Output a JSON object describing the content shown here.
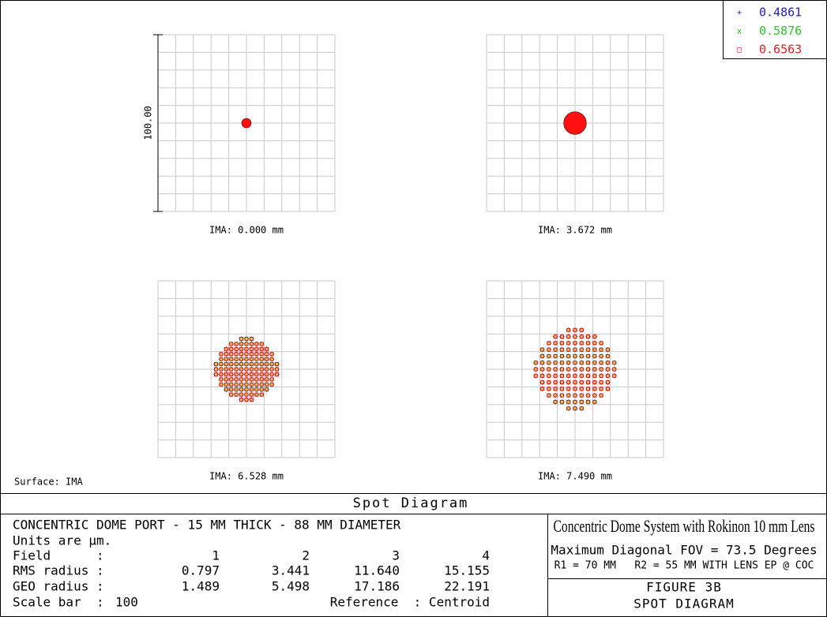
{
  "legend": [
    {
      "symbol": "+",
      "label": "0.4861",
      "color": "#2020c0"
    },
    {
      "symbol": "x",
      "label": "0.5876",
      "color": "#30c030"
    },
    {
      "symbol": "□",
      "label": "0.6563",
      "color": "#e02020"
    }
  ],
  "scale_label": "100.00",
  "fields": [
    "IMA: 0.000 mm",
    "IMA: 3.672 mm",
    "IMA: 6.528 mm",
    "IMA: 7.490 mm"
  ],
  "surface": "Surface: IMA",
  "title": "Spot Diagram",
  "info": {
    "heading": "CONCENTRIC DOME PORT - 15 MM THICK - 88 MM DIAMETER",
    "units": "Units are µm.",
    "field_label": "Field      :",
    "field_numbers": [
      "1",
      "2",
      "3",
      "4"
    ],
    "rms_label": "RMS radius :",
    "rms": [
      "0.797",
      "3.441",
      "11.640",
      "15.155"
    ],
    "geo_label": "GEO radius :",
    "geo": [
      "1.489",
      "5.498",
      "17.186",
      "22.191"
    ],
    "scale_bar_label": "Scale bar  :",
    "scale_bar": 100,
    "reference": "Reference  : Centroid"
  },
  "caption": {
    "title": "Concentric Dome System with Rokinon 10 mm Lens",
    "line1": "Maximum Diagonal FOV = 73.5 Degrees",
    "line2": "R1 = 70 MM   R2 = 55 MM WITH LENS EP @ COC",
    "figure": "FIGURE 3B",
    "figure_title": "SPOT DIAGRAM"
  }
}
